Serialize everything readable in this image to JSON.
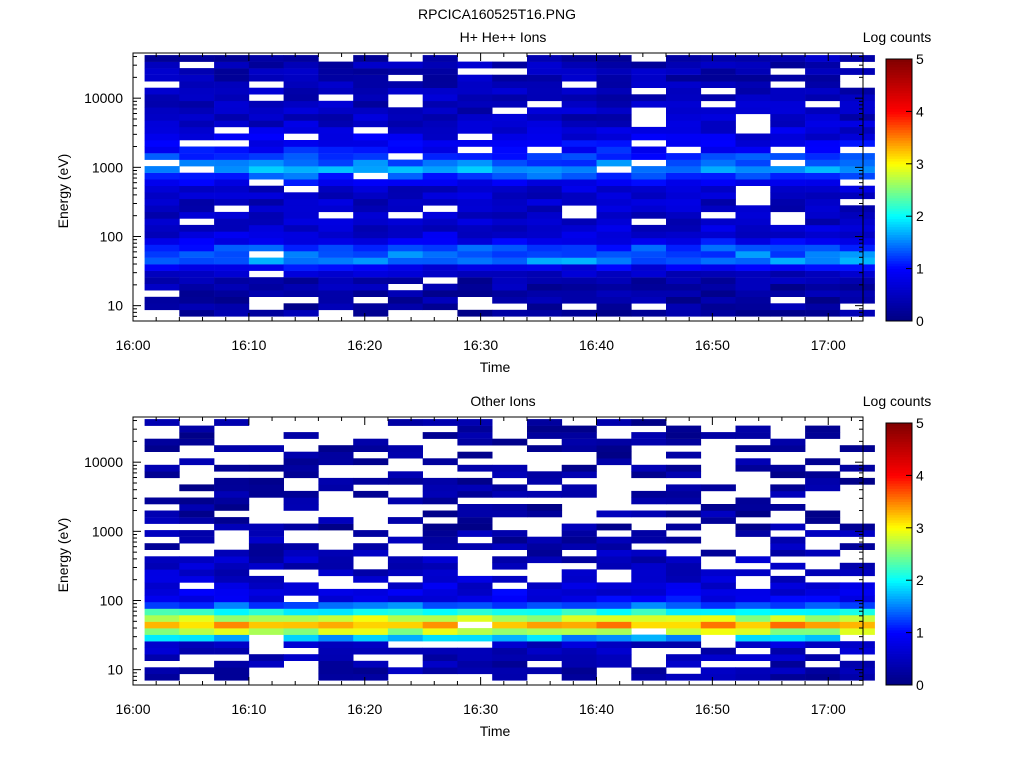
{
  "figure": {
    "title": "RPCICA160525T16.PNG"
  },
  "colors": {
    "colormap": [
      "#000080",
      "#0000ff",
      "#00ffff",
      "#ffff00",
      "#ff0000",
      "#800000"
    ],
    "missing": "#ffffff",
    "axis": "#000000"
  },
  "chart_data": [
    {
      "type": "heatmap",
      "title": "H+ He++ Ions",
      "xlabel": "Time",
      "ylabel": "Energy (eV)",
      "xticks": [
        "16:00",
        "16:10",
        "16:20",
        "16:30",
        "16:40",
        "16:50",
        "17:00"
      ],
      "xlim": [
        "16:00",
        "17:03"
      ],
      "yticks": [
        "10",
        "100",
        "1000",
        "10000"
      ],
      "ylim": [
        6,
        45000
      ],
      "yscale": "log",
      "colorbar": {
        "label": "Log counts",
        "ticks": [
          "0",
          "1",
          "2",
          "3",
          "4",
          "5"
        ],
        "range": [
          0,
          5
        ]
      },
      "time_bins": [
        "16:02",
        "16:05",
        "16:08",
        "16:11",
        "16:14",
        "16:17",
        "16:20",
        "16:23",
        "16:26",
        "16:29",
        "16:32",
        "16:35",
        "16:38",
        "16:41",
        "16:44",
        "16:47",
        "16:50",
        "16:53",
        "16:56",
        "16:59",
        "17:02"
      ],
      "energy_profile": [
        {
          "energy": 9,
          "log_counts": 0.2
        },
        {
          "energy": 15,
          "log_counts": 0.3
        },
        {
          "energy": 25,
          "log_counts": 0.35
        },
        {
          "energy": 35,
          "log_counts": 0.8
        },
        {
          "energy": 45,
          "log_counts": 1.5
        },
        {
          "energy": 55,
          "log_counts": 1.4
        },
        {
          "energy": 70,
          "log_counts": 1.2
        },
        {
          "energy": 100,
          "log_counts": 0.7
        },
        {
          "energy": 200,
          "log_counts": 0.5
        },
        {
          "energy": 500,
          "log_counts": 0.6
        },
        {
          "energy": 900,
          "log_counts": 1.6
        },
        {
          "energy": 2000,
          "log_counts": 0.9
        },
        {
          "energy": 5000,
          "log_counts": 0.5
        },
        {
          "energy": 10000,
          "log_counts": 0.45
        },
        {
          "energy": 30000,
          "log_counts": 0.4
        }
      ],
      "grid": false
    },
    {
      "type": "heatmap",
      "title": "Other Ions",
      "xlabel": "Time",
      "ylabel": "Energy (eV)",
      "xticks": [
        "16:00",
        "16:10",
        "16:20",
        "16:30",
        "16:40",
        "16:50",
        "17:00"
      ],
      "xlim": [
        "16:00",
        "17:03"
      ],
      "yticks": [
        "10",
        "100",
        "1000",
        "10000"
      ],
      "ylim": [
        6,
        45000
      ],
      "yscale": "log",
      "colorbar": {
        "label": "Log counts",
        "ticks": [
          "0",
          "1",
          "2",
          "3",
          "4",
          "5"
        ],
        "range": [
          0,
          5
        ]
      },
      "time_bins": [
        "16:02",
        "16:05",
        "16:08",
        "16:11",
        "16:14",
        "16:17",
        "16:20",
        "16:23",
        "16:26",
        "16:29",
        "16:32",
        "16:35",
        "16:38",
        "16:41",
        "16:44",
        "16:47",
        "16:50",
        "16:53",
        "16:56",
        "16:59",
        "17:02"
      ],
      "energy_profile": [
        {
          "energy": 9,
          "log_counts": 0.3
        },
        {
          "energy": 15,
          "log_counts": 0.4
        },
        {
          "energy": 25,
          "log_counts": 0.6
        },
        {
          "energy": 30,
          "log_counts": 2.0
        },
        {
          "energy": 35,
          "log_counts": 2.6
        },
        {
          "energy": 42,
          "log_counts": 3.5
        },
        {
          "energy": 50,
          "log_counts": 3.0
        },
        {
          "energy": 60,
          "log_counts": 2.5
        },
        {
          "energy": 70,
          "log_counts": 2.0
        },
        {
          "energy": 100,
          "log_counts": 0.9
        },
        {
          "energy": 200,
          "log_counts": 0.6
        },
        {
          "energy": 500,
          "log_counts": 0.4
        },
        {
          "energy": 1000,
          "log_counts": 0.3
        },
        {
          "energy": 5000,
          "log_counts": 0.2
        },
        {
          "energy": 30000,
          "log_counts": 0.15
        }
      ],
      "grid": false
    }
  ]
}
